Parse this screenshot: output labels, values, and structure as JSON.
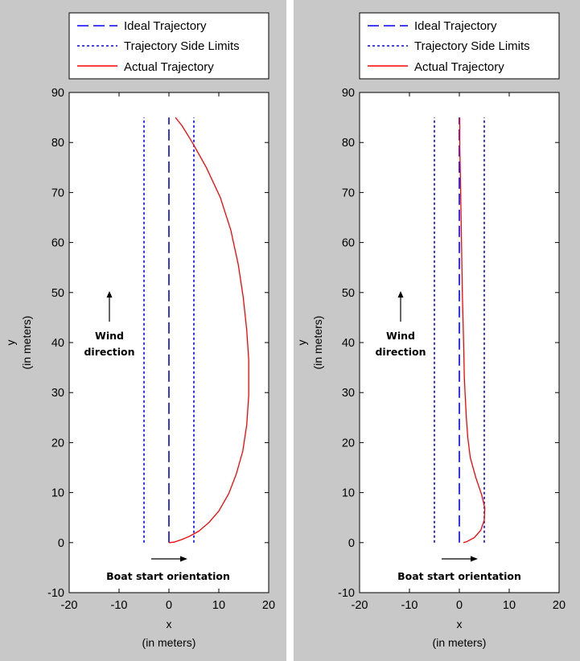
{
  "chart_data": [
    {
      "type": "line",
      "title": "",
      "xlabel": "x",
      "xlabel_unit": "(in meters)",
      "ylabel": "y",
      "ylabel_unit": "(in meters)",
      "xlim": [
        -20,
        20
      ],
      "ylim": [
        -10,
        90
      ],
      "xticks": [
        "-20",
        "-10",
        "0",
        "10",
        "20"
      ],
      "yticks": [
        "-10",
        "0",
        "10",
        "20",
        "30",
        "40",
        "50",
        "60",
        "70",
        "80",
        "90"
      ],
      "grid": false,
      "legend_position": "top",
      "series": [
        {
          "name": "Ideal Trajectory",
          "style": "dashed",
          "color": "#0000ff",
          "x": [
            0,
            0
          ],
          "y": [
            0,
            85
          ]
        },
        {
          "name": "Trajectory Side Limits",
          "style": "dotted",
          "color": "#0000ff",
          "x": [
            -5,
            -5
          ],
          "y": [
            0,
            85
          ],
          "x2": [
            5,
            5
          ],
          "y2": [
            0,
            85
          ]
        },
        {
          "name": "Actual Trajectory",
          "style": "solid",
          "color": "#ff0000",
          "x": [
            0,
            1,
            2.5,
            4,
            6,
            8,
            10,
            12,
            13.5,
            14.8,
            15.6,
            16,
            16,
            15.6,
            14.9,
            13.9,
            12.4,
            10.3,
            7.5,
            4.7,
            2.6,
            1.3
          ],
          "y": [
            0,
            0.1,
            0.6,
            1.2,
            2.3,
            4,
            6.3,
            9.8,
            13.7,
            18.3,
            23.5,
            29.5,
            36.5,
            42.5,
            49,
            55.6,
            62.5,
            69,
            75,
            80,
            83.4,
            85
          ]
        }
      ],
      "annotations": [
        {
          "text_lines": [
            "Wind",
            "direction"
          ],
          "arrow": "up"
        },
        {
          "text": "Boat start orientation",
          "arrow": "right"
        }
      ]
    },
    {
      "type": "line",
      "title": "",
      "xlabel": "x",
      "xlabel_unit": "(in meters)",
      "ylabel": "y",
      "ylabel_unit": "(in meters)",
      "xlim": [
        -20,
        20
      ],
      "ylim": [
        -10,
        90
      ],
      "xticks": [
        "-20",
        "-10",
        "0",
        "10",
        "20"
      ],
      "yticks": [
        "-10",
        "0",
        "10",
        "20",
        "30",
        "40",
        "50",
        "60",
        "70",
        "80",
        "90"
      ],
      "grid": false,
      "legend_position": "top",
      "series": [
        {
          "name": "Ideal Trajectory",
          "style": "dashed",
          "color": "#0000ff",
          "x": [
            0,
            0
          ],
          "y": [
            0,
            85
          ]
        },
        {
          "name": "Trajectory Side Limits",
          "style": "dotted",
          "color": "#0000ff",
          "x": [
            -5,
            -5
          ],
          "y": [
            0,
            85
          ],
          "x2": [
            5,
            5
          ],
          "y2": [
            0,
            85
          ]
        },
        {
          "name": "Actual Trajectory",
          "style": "solid",
          "color": "#ff0000",
          "x": [
            0.8,
            1.5,
            3,
            4.3,
            5,
            5.1,
            4.5,
            3.3,
            2.2,
            1.7,
            1.4,
            1.2,
            1.0,
            0.9,
            0.75,
            0.6,
            0.5,
            0.4,
            0.3,
            0.2,
            0.1,
            0.1
          ],
          "y": [
            0,
            0.2,
            1,
            2.5,
            4.5,
            7,
            9.5,
            13,
            17,
            21,
            25,
            29,
            33,
            38,
            44,
            50,
            56,
            62,
            68,
            74,
            79,
            85
          ]
        }
      ],
      "annotations": [
        {
          "text_lines": [
            "Wind",
            "direction"
          ],
          "arrow": "up"
        },
        {
          "text": "Boat start orientation",
          "arrow": "right"
        }
      ]
    }
  ]
}
